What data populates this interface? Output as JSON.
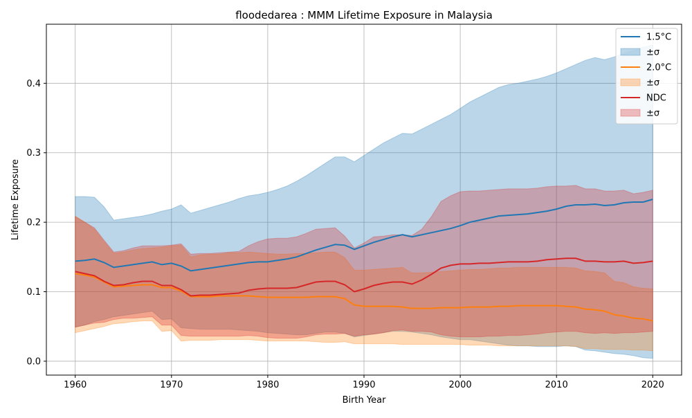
{
  "chart_data": {
    "type": "line",
    "title": "floodedarea : MMM Lifetime Exposure in Malaysia",
    "xlabel": "Birth Year",
    "ylabel": "Lifetime Exposure",
    "xlim": [
      1957,
      2023
    ],
    "ylim": [
      -0.02,
      0.485
    ],
    "xticks": [
      1960,
      1970,
      1980,
      1990,
      2000,
      2010,
      2020
    ],
    "xtick_labels": [
      "1960",
      "1970",
      "1980",
      "1990",
      "2000",
      "2010",
      "2020"
    ],
    "yticks": [
      0.0,
      0.1,
      0.2,
      0.3,
      0.4
    ],
    "ytick_labels": [
      "0.0",
      "0.1",
      "0.2",
      "0.3",
      "0.4"
    ],
    "grid": true,
    "legend_position": "top-right",
    "x": [
      1960,
      1961,
      1962,
      1963,
      1964,
      1965,
      1966,
      1967,
      1968,
      1969,
      1970,
      1971,
      1972,
      1973,
      1974,
      1975,
      1976,
      1977,
      1978,
      1979,
      1980,
      1981,
      1982,
      1983,
      1984,
      1985,
      1986,
      1987,
      1988,
      1989,
      1990,
      1991,
      1992,
      1993,
      1994,
      1995,
      1996,
      1997,
      1998,
      1999,
      2000,
      2001,
      2002,
      2003,
      2004,
      2005,
      2006,
      2007,
      2008,
      2009,
      2010,
      2011,
      2012,
      2013,
      2014,
      2015,
      2016,
      2017,
      2018,
      2019,
      2020
    ],
    "series": [
      {
        "name": "1.5°C",
        "band_name": "±σ",
        "color": "#1f77b4",
        "band_color": "#1f77b4",
        "mean": [
          0.144,
          0.145,
          0.147,
          0.142,
          0.135,
          0.137,
          0.139,
          0.141,
          0.143,
          0.139,
          0.141,
          0.137,
          0.13,
          0.132,
          0.134,
          0.136,
          0.138,
          0.14,
          0.142,
          0.143,
          0.143,
          0.145,
          0.147,
          0.15,
          0.155,
          0.16,
          0.164,
          0.168,
          0.167,
          0.161,
          0.166,
          0.171,
          0.175,
          0.179,
          0.182,
          0.179,
          0.182,
          0.185,
          0.188,
          0.191,
          0.195,
          0.2,
          0.203,
          0.206,
          0.209,
          0.21,
          0.211,
          0.212,
          0.214,
          0.216,
          0.219,
          0.223,
          0.225,
          0.225,
          0.226,
          0.224,
          0.225,
          0.228,
          0.229,
          0.229,
          0.233
        ],
        "upper": [
          0.237,
          0.237,
          0.236,
          0.222,
          0.203,
          0.205,
          0.207,
          0.209,
          0.212,
          0.216,
          0.219,
          0.225,
          0.213,
          0.217,
          0.221,
          0.225,
          0.229,
          0.234,
          0.238,
          0.24,
          0.243,
          0.247,
          0.252,
          0.259,
          0.267,
          0.276,
          0.285,
          0.294,
          0.294,
          0.287,
          0.296,
          0.305,
          0.314,
          0.321,
          0.328,
          0.327,
          0.334,
          0.341,
          0.348,
          0.355,
          0.364,
          0.373,
          0.38,
          0.387,
          0.394,
          0.398,
          0.4,
          0.403,
          0.406,
          0.41,
          0.415,
          0.421,
          0.427,
          0.433,
          0.437,
          0.434,
          0.438,
          0.443,
          0.447,
          0.452,
          0.455
        ],
        "lower": [
          0.049,
          0.052,
          0.057,
          0.06,
          0.064,
          0.066,
          0.068,
          0.07,
          0.072,
          0.06,
          0.061,
          0.048,
          0.047,
          0.046,
          0.046,
          0.046,
          0.046,
          0.045,
          0.044,
          0.043,
          0.041,
          0.04,
          0.039,
          0.038,
          0.038,
          0.04,
          0.042,
          0.042,
          0.04,
          0.035,
          0.037,
          0.039,
          0.041,
          0.043,
          0.043,
          0.042,
          0.04,
          0.038,
          0.035,
          0.033,
          0.031,
          0.031,
          0.029,
          0.027,
          0.025,
          0.023,
          0.022,
          0.022,
          0.021,
          0.021,
          0.021,
          0.022,
          0.021,
          0.016,
          0.015,
          0.013,
          0.011,
          0.01,
          0.008,
          0.005,
          0.004
        ]
      },
      {
        "name": "2.0°C",
        "band_name": "±σ",
        "color": "#ff7f0e",
        "band_color": "#ff7f0e",
        "mean": [
          0.126,
          0.124,
          0.121,
          0.114,
          0.107,
          0.108,
          0.109,
          0.11,
          0.11,
          0.106,
          0.106,
          0.101,
          0.093,
          0.093,
          0.093,
          0.094,
          0.094,
          0.094,
          0.094,
          0.093,
          0.092,
          0.092,
          0.092,
          0.092,
          0.092,
          0.093,
          0.093,
          0.093,
          0.09,
          0.081,
          0.079,
          0.079,
          0.079,
          0.079,
          0.078,
          0.076,
          0.076,
          0.076,
          0.077,
          0.077,
          0.077,
          0.078,
          0.078,
          0.078,
          0.079,
          0.079,
          0.08,
          0.08,
          0.08,
          0.08,
          0.08,
          0.079,
          0.078,
          0.075,
          0.074,
          0.072,
          0.067,
          0.065,
          0.062,
          0.061,
          0.058
        ],
        "upper": [
          0.209,
          0.2,
          0.19,
          0.172,
          0.155,
          0.157,
          0.16,
          0.162,
          0.163,
          0.164,
          0.166,
          0.167,
          0.15,
          0.153,
          0.154,
          0.154,
          0.156,
          0.156,
          0.157,
          0.156,
          0.155,
          0.154,
          0.154,
          0.155,
          0.155,
          0.156,
          0.157,
          0.157,
          0.149,
          0.131,
          0.131,
          0.132,
          0.133,
          0.134,
          0.135,
          0.127,
          0.127,
          0.128,
          0.129,
          0.13,
          0.131,
          0.132,
          0.132,
          0.133,
          0.134,
          0.134,
          0.135,
          0.135,
          0.135,
          0.135,
          0.135,
          0.135,
          0.134,
          0.13,
          0.129,
          0.127,
          0.115,
          0.113,
          0.107,
          0.105,
          0.104
        ],
        "lower": [
          0.041,
          0.044,
          0.047,
          0.05,
          0.054,
          0.055,
          0.057,
          0.058,
          0.058,
          0.043,
          0.044,
          0.029,
          0.03,
          0.03,
          0.03,
          0.031,
          0.031,
          0.031,
          0.031,
          0.03,
          0.029,
          0.029,
          0.029,
          0.029,
          0.029,
          0.028,
          0.027,
          0.027,
          0.028,
          0.025,
          0.025,
          0.025,
          0.025,
          0.025,
          0.024,
          0.024,
          0.024,
          0.024,
          0.024,
          0.024,
          0.024,
          0.023,
          0.023,
          0.023,
          0.022,
          0.022,
          0.022,
          0.022,
          0.022,
          0.022,
          0.022,
          0.022,
          0.021,
          0.018,
          0.018,
          0.017,
          0.017,
          0.017,
          0.016,
          0.016,
          0.015
        ]
      },
      {
        "name": "NDC",
        "band_name": "±σ",
        "color": "#d62728",
        "band_color": "#d62728",
        "mean": [
          0.129,
          0.126,
          0.123,
          0.115,
          0.109,
          0.11,
          0.113,
          0.115,
          0.115,
          0.109,
          0.109,
          0.103,
          0.094,
          0.095,
          0.095,
          0.096,
          0.097,
          0.098,
          0.102,
          0.104,
          0.105,
          0.105,
          0.105,
          0.106,
          0.11,
          0.114,
          0.115,
          0.115,
          0.11,
          0.1,
          0.104,
          0.109,
          0.112,
          0.114,
          0.114,
          0.111,
          0.117,
          0.125,
          0.134,
          0.138,
          0.14,
          0.14,
          0.141,
          0.141,
          0.142,
          0.143,
          0.143,
          0.143,
          0.144,
          0.146,
          0.147,
          0.148,
          0.148,
          0.144,
          0.144,
          0.143,
          0.143,
          0.144,
          0.141,
          0.142,
          0.144
        ],
        "upper": [
          0.208,
          0.2,
          0.192,
          0.174,
          0.157,
          0.159,
          0.163,
          0.166,
          0.166,
          0.166,
          0.167,
          0.169,
          0.154,
          0.155,
          0.155,
          0.156,
          0.157,
          0.158,
          0.166,
          0.172,
          0.176,
          0.177,
          0.177,
          0.179,
          0.184,
          0.19,
          0.191,
          0.192,
          0.18,
          0.163,
          0.17,
          0.179,
          0.18,
          0.182,
          0.182,
          0.181,
          0.19,
          0.208,
          0.23,
          0.238,
          0.244,
          0.245,
          0.245,
          0.246,
          0.247,
          0.248,
          0.248,
          0.248,
          0.249,
          0.251,
          0.252,
          0.252,
          0.253,
          0.248,
          0.248,
          0.245,
          0.245,
          0.246,
          0.241,
          0.243,
          0.246
        ],
        "lower": [
          0.049,
          0.052,
          0.055,
          0.056,
          0.06,
          0.062,
          0.062,
          0.063,
          0.064,
          0.052,
          0.052,
          0.037,
          0.036,
          0.036,
          0.036,
          0.036,
          0.036,
          0.036,
          0.037,
          0.036,
          0.034,
          0.033,
          0.033,
          0.033,
          0.035,
          0.038,
          0.039,
          0.039,
          0.04,
          0.036,
          0.038,
          0.039,
          0.041,
          0.044,
          0.045,
          0.043,
          0.043,
          0.042,
          0.038,
          0.036,
          0.035,
          0.035,
          0.035,
          0.036,
          0.036,
          0.037,
          0.037,
          0.038,
          0.039,
          0.041,
          0.042,
          0.043,
          0.043,
          0.041,
          0.04,
          0.041,
          0.04,
          0.041,
          0.041,
          0.042,
          0.043
        ]
      }
    ]
  }
}
